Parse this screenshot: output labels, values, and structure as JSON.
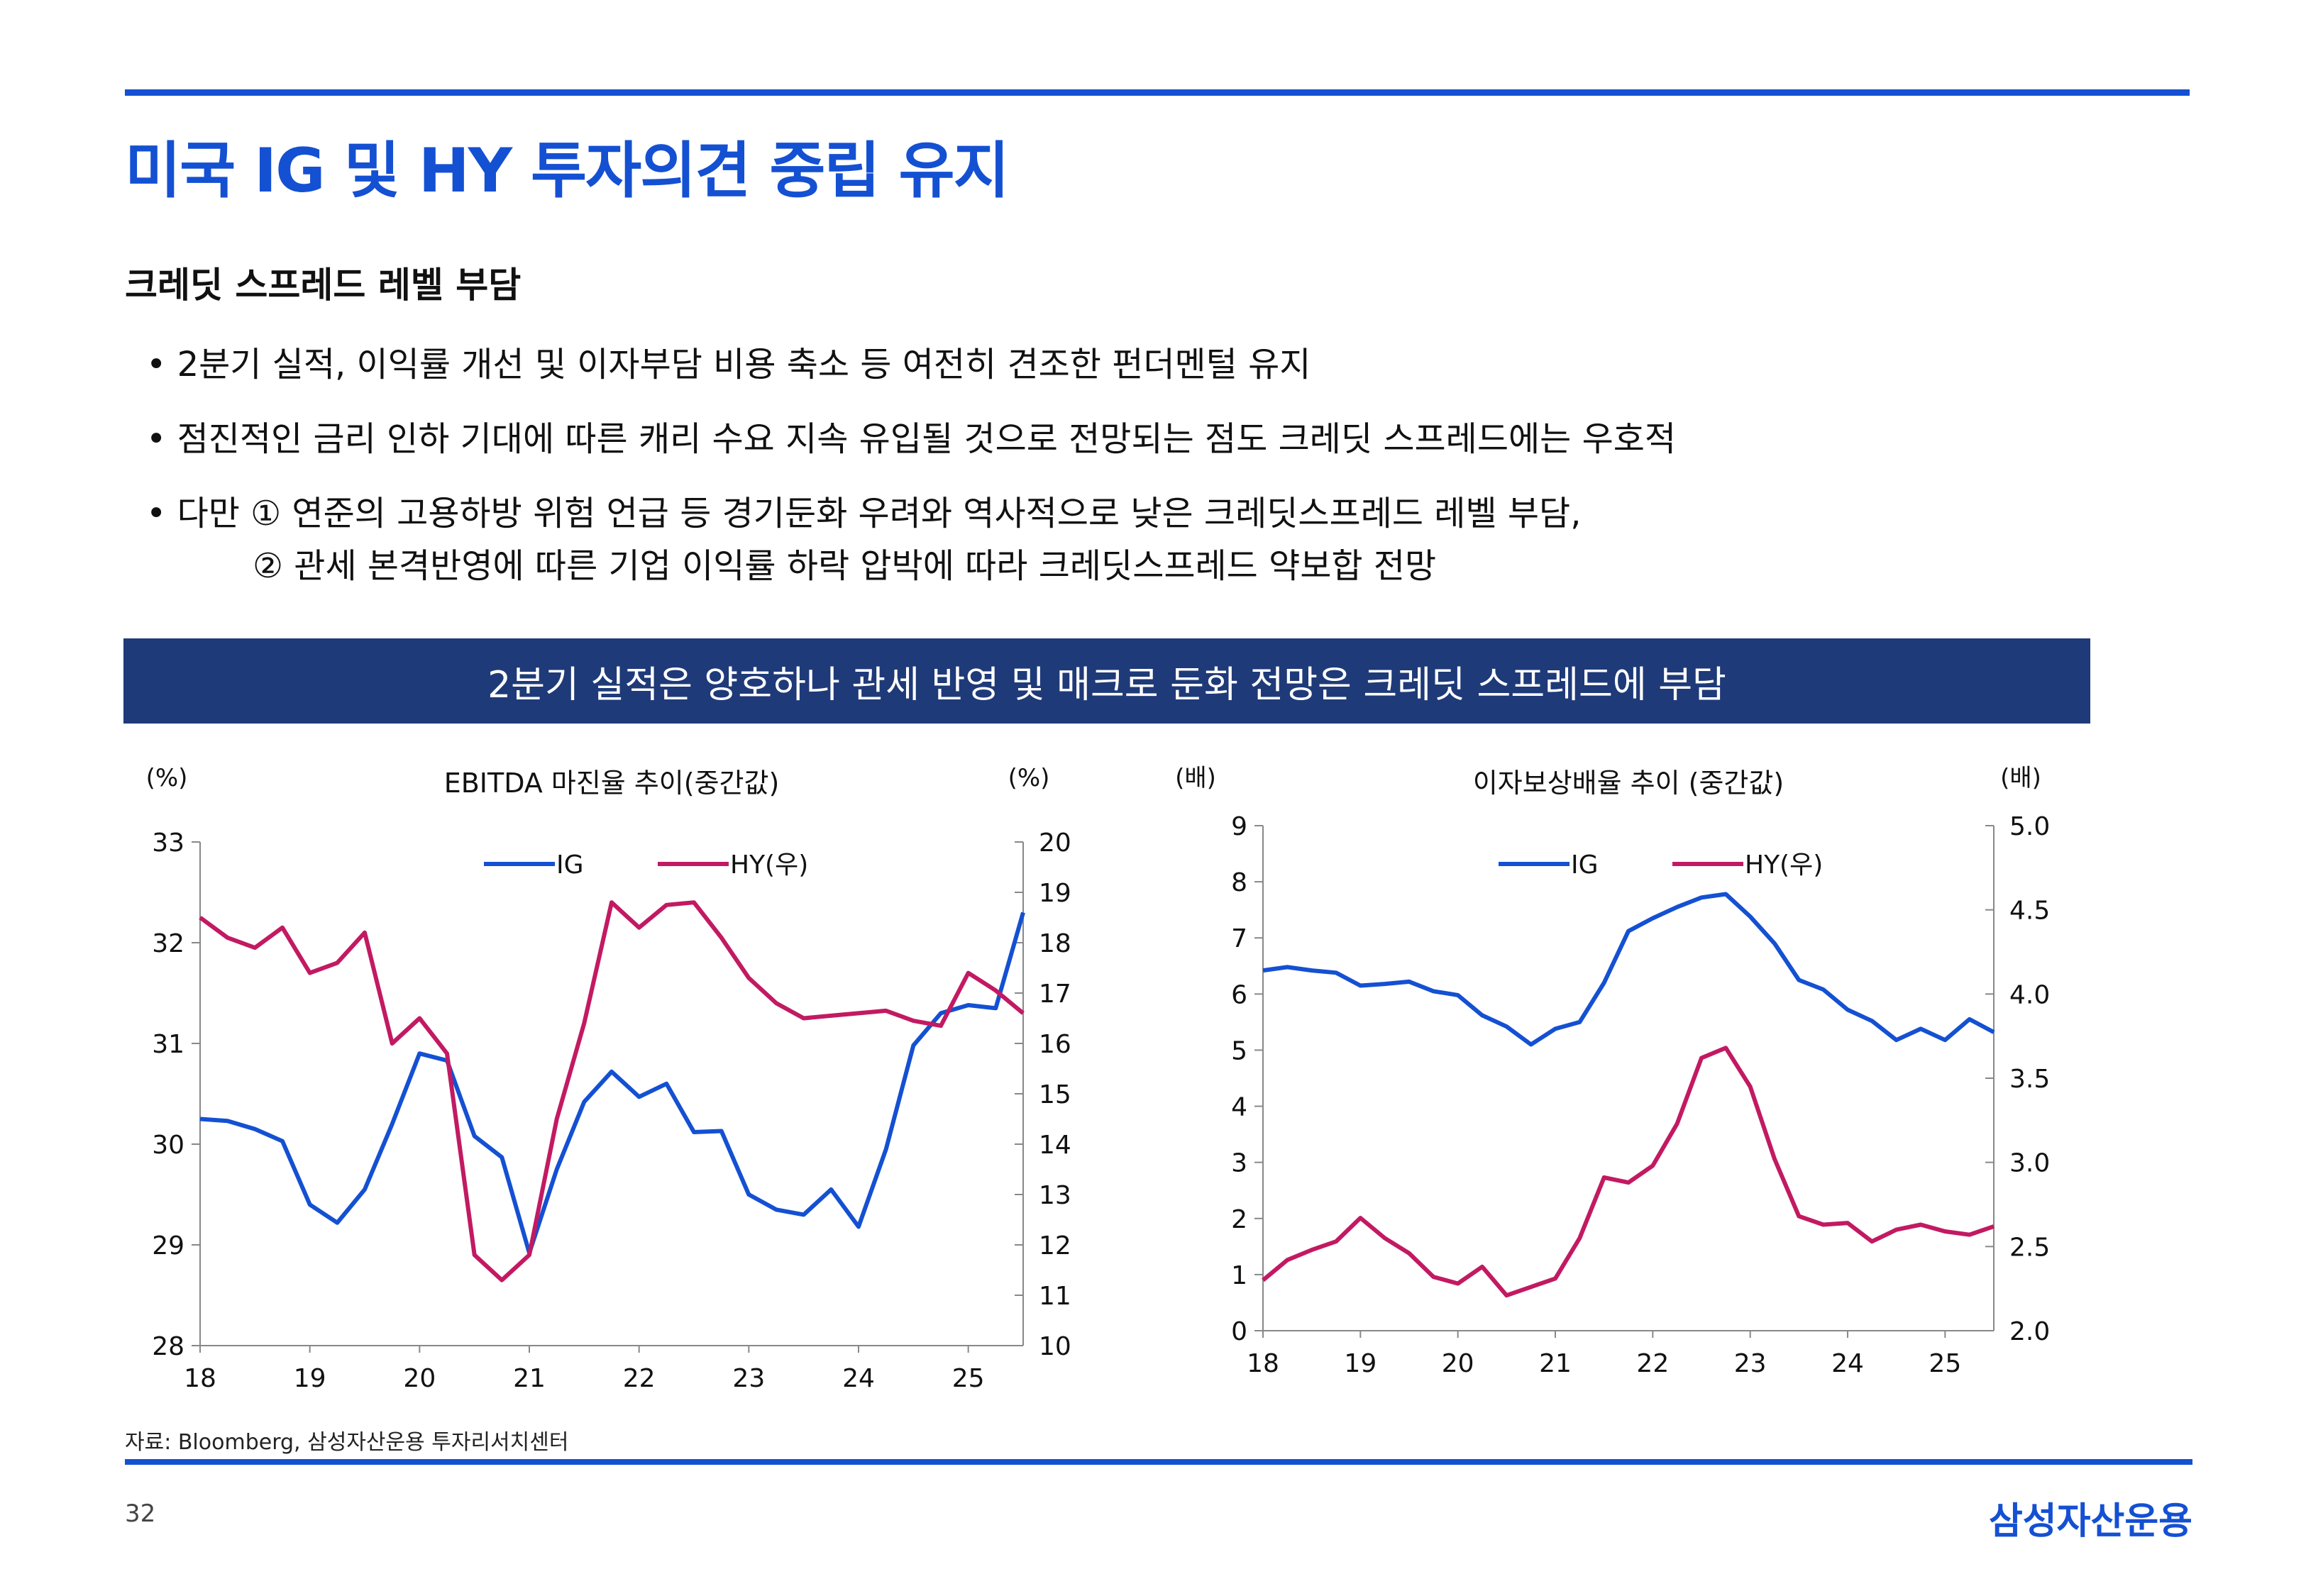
{
  "header": {
    "title": "미국 IG 및 HY 투자의견 중립 유지"
  },
  "section": {
    "subtitle": "크레딧 스프레드 레벨 부담"
  },
  "bullets": [
    "• 2분기 실적, 이익률 개선 및 이자부담 비용 축소 등 여전히 견조한 펀더멘털 유지",
    "• 점진적인 금리 인하 기대에 따른 캐리 수요 지속 유입될 것으로 전망되는 점도 크레딧 스프레드에는 우호적",
    "• 다만 ① 연준의 고용하방 위험 언급 등 경기둔화 우려와 역사적으로 낮은 크레딧스프레드 레벨 부담,",
    "② 관세 본격반영에 따른 기업 이익률 하락 압박에 따라 크레딧스프레드 약보합 전망"
  ],
  "banner": {
    "text": "2분기 실적은 양호하나 관세 반영 및 매크로 둔화 전망은 크레딧 스프레드에 부담"
  },
  "footer": {
    "source": "자료: Bloomberg, 삼성자산운용 투자리서치센터",
    "page": "32",
    "logo": "삼성자산운용"
  },
  "colors": {
    "accent": "#1450d2",
    "banner": "#1f3a78",
    "ig": "#1450d2",
    "hy": "#c21a62"
  },
  "chart_data": [
    {
      "type": "line",
      "title": "EBITDA 마진율 추이(중간값)",
      "ylabel_left": "(%)",
      "ylabel_right": "(%)",
      "x_ticks": [
        "18",
        "19",
        "20",
        "21",
        "22",
        "23",
        "24",
        "25"
      ],
      "ylim_left": [
        28,
        33
      ],
      "ylim_right": [
        10,
        20
      ],
      "y_ticks_left": [
        "28",
        "29",
        "30",
        "31",
        "32",
        "33"
      ],
      "y_ticks_right": [
        "10",
        "11",
        "12",
        "13",
        "14",
        "15",
        "16",
        "17",
        "18",
        "19",
        "20"
      ],
      "legend": "top",
      "series": [
        {
          "name": "IG",
          "axis": "left",
          "x": [
            2018.0,
            2018.25,
            2018.5,
            2018.75,
            2019.0,
            2019.25,
            2019.5,
            2019.75,
            2020.0,
            2020.25,
            2020.5,
            2020.75,
            2021.0,
            2021.25,
            2021.5,
            2021.75,
            2022.0,
            2022.25,
            2022.5,
            2022.75,
            2023.0,
            2023.25,
            2023.5,
            2023.75,
            2024.0,
            2024.25,
            2024.5,
            2024.75,
            2025.0,
            2025.25,
            2025.5
          ],
          "values": [
            30.25,
            30.23,
            30.15,
            30.03,
            29.4,
            29.22,
            29.55,
            30.2,
            30.9,
            30.83,
            30.08,
            29.87,
            28.92,
            29.75,
            30.42,
            30.72,
            30.47,
            30.6,
            30.12,
            30.13,
            29.5,
            29.35,
            29.3,
            29.55,
            29.18,
            29.95,
            30.98,
            31.3,
            31.38,
            31.35,
            32.3
          ]
        },
        {
          "name": "HY(우)",
          "axis": "right",
          "x": [
            2018.0,
            2018.25,
            2018.5,
            2018.75,
            2019.0,
            2019.25,
            2019.5,
            2019.75,
            2020.0,
            2020.25,
            2020.5,
            2020.75,
            2021.0,
            2021.25,
            2021.5,
            2021.75,
            2022.0,
            2022.25,
            2022.5,
            2022.75,
            2023.0,
            2023.25,
            2023.5,
            2023.75,
            2024.0,
            2024.25,
            2024.5,
            2024.75,
            2025.0,
            2025.25,
            2025.5
          ],
          "values": [
            18.5,
            18.1,
            17.9,
            18.3,
            17.4,
            17.6,
            18.2,
            16.0,
            16.5,
            15.8,
            11.8,
            11.3,
            11.8,
            14.5,
            16.4,
            18.8,
            18.3,
            18.75,
            18.8,
            18.1,
            17.3,
            16.8,
            16.5,
            16.55,
            16.6,
            16.65,
            16.45,
            16.35,
            17.4,
            17.05,
            16.6
          ]
        }
      ]
    },
    {
      "type": "line",
      "title": "이자보상배율 추이 (중간값)",
      "ylabel_left": "(배)",
      "ylabel_right": "(배)",
      "x_ticks": [
        "18",
        "19",
        "20",
        "21",
        "22",
        "23",
        "24",
        "25"
      ],
      "ylim_left": [
        0,
        9
      ],
      "ylim_right": [
        2.0,
        5.0
      ],
      "y_ticks_left": [
        "0",
        "1",
        "2",
        "3",
        "4",
        "5",
        "6",
        "7",
        "8",
        "9"
      ],
      "y_ticks_right": [
        "2.0",
        "2.5",
        "3.0",
        "3.5",
        "4.0",
        "4.5",
        "5.0"
      ],
      "legend": "top",
      "series": [
        {
          "name": "IG",
          "axis": "left",
          "x": [
            2018.0,
            2018.25,
            2018.5,
            2018.75,
            2019.0,
            2019.25,
            2019.5,
            2019.75,
            2020.0,
            2020.25,
            2020.5,
            2020.75,
            2021.0,
            2021.25,
            2021.5,
            2021.75,
            2022.0,
            2022.25,
            2022.5,
            2022.75,
            2023.0,
            2023.25,
            2023.5,
            2023.75,
            2024.0,
            2024.25,
            2024.5,
            2024.75,
            2025.0,
            2025.25,
            2025.5
          ],
          "values": [
            6.42,
            6.48,
            6.42,
            6.38,
            6.15,
            6.18,
            6.22,
            6.05,
            5.98,
            5.62,
            5.42,
            5.1,
            5.38,
            5.5,
            6.2,
            7.12,
            7.35,
            7.55,
            7.72,
            7.78,
            7.38,
            6.9,
            6.25,
            6.08,
            5.72,
            5.52,
            5.18,
            5.38,
            5.18,
            5.55,
            5.32
          ]
        },
        {
          "name": "HY(우)",
          "axis": "right",
          "x": [
            2018.0,
            2018.25,
            2018.5,
            2018.75,
            2019.0,
            2019.25,
            2019.5,
            2019.75,
            2020.0,
            2020.25,
            2020.5,
            2020.75,
            2021.0,
            2021.25,
            2021.5,
            2021.75,
            2022.0,
            2022.25,
            2022.5,
            2022.75,
            2023.0,
            2023.25,
            2023.5,
            2023.75,
            2024.0,
            2024.25,
            2024.5,
            2024.75,
            2025.0,
            2025.25,
            2025.5
          ],
          "values": [
            2.3,
            2.42,
            2.48,
            2.53,
            2.67,
            2.55,
            2.46,
            2.32,
            2.28,
            2.38,
            2.21,
            2.26,
            2.31,
            2.55,
            2.91,
            2.88,
            2.98,
            3.23,
            3.62,
            3.68,
            3.45,
            3.02,
            2.68,
            2.63,
            2.64,
            2.53,
            2.6,
            2.63,
            2.59,
            2.57,
            2.62
          ]
        }
      ]
    }
  ]
}
